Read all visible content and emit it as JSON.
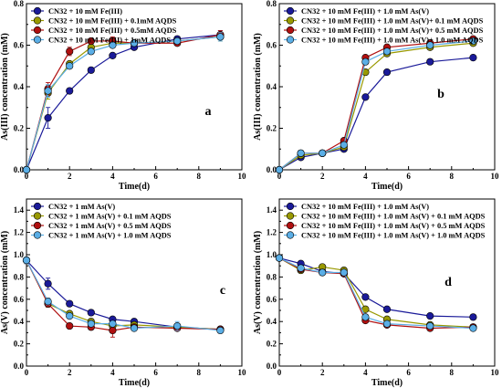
{
  "figure": {
    "panels": [
      {
        "id": "a",
        "letter": "a",
        "xlabel": "Time(d)",
        "ylabel": "As(III) concentration (mM)",
        "xlim": [
          0,
          10
        ],
        "ylim": [
          0,
          0.8
        ],
        "xticks": [
          "0",
          "2",
          "4",
          "6",
          "8",
          "10"
        ],
        "yticks": [
          "0.0",
          "0.2",
          "0.4",
          "0.6",
          "0.8"
        ]
      },
      {
        "id": "b",
        "letter": "b",
        "xlabel": "Time(d)",
        "ylabel": "As(III) concentration (mM)",
        "xlim": [
          0,
          10
        ],
        "ylim": [
          0,
          0.8
        ],
        "xticks": [
          "0",
          "2",
          "4",
          "6",
          "8",
          "10"
        ],
        "yticks": [
          "0.0",
          "0.2",
          "0.4",
          "0.6",
          "0.8"
        ]
      },
      {
        "id": "c",
        "letter": "c",
        "xlabel": "Time(d)",
        "ylabel": "As(V) concentration (mM)",
        "xlim": [
          0,
          10
        ],
        "ylim": [
          0,
          1.5
        ],
        "xticks": [
          "0",
          "2",
          "4",
          "6",
          "8",
          "10"
        ],
        "yticks": [
          "0.0",
          "0.2",
          "0.4",
          "0.6",
          "0.8",
          "1.0",
          "1.2",
          "1.4"
        ]
      },
      {
        "id": "d",
        "letter": "d",
        "xlabel": "Time(d)",
        "ylabel": "As(V) concentration (mM)",
        "xlim": [
          0,
          10
        ],
        "ylim": [
          0,
          1.5
        ],
        "xticks": [
          "0",
          "2",
          "4",
          "6",
          "8",
          "10"
        ],
        "yticks": [
          "0.0",
          "0.2",
          "0.4",
          "0.6",
          "0.8",
          "1.0",
          "1.2",
          "1.4"
        ]
      }
    ]
  },
  "chart_data": [
    {
      "type": "line",
      "panel": "a",
      "x": [
        0,
        1,
        2,
        3,
        4,
        5,
        7,
        9
      ],
      "xlabel": "Time(d)",
      "ylabel": "As(III) concentration (mM)",
      "xlim": [
        0,
        10
      ],
      "ylim": [
        0,
        0.8
      ],
      "legend_position": "top-left",
      "series": [
        {
          "name": "CN32 + 10 mM Fe(III)",
          "color": "#1a1a99",
          "values": [
            0,
            0.25,
            0.38,
            0.48,
            0.55,
            0.59,
            0.63,
            0.65
          ],
          "errors": [
            0,
            0.05,
            0.01,
            0.01,
            0.01,
            0.01,
            0.01,
            0.02
          ]
        },
        {
          "name": "CN32 + 10 mM Fe(III) + 0.1mM AQDS",
          "color": "#999900",
          "values": [
            0,
            0.37,
            0.51,
            0.59,
            0.61,
            0.61,
            0.62,
            0.64
          ],
          "errors": [
            0,
            0.03,
            0.01,
            0.01,
            0.01,
            0.01,
            0.01,
            0.02
          ]
        },
        {
          "name": "CN32 + 10 mM Fe(III) + 0.5mM AQDS",
          "color": "#b01010",
          "values": [
            0,
            0.39,
            0.57,
            0.62,
            0.62,
            0.61,
            0.61,
            0.65
          ],
          "errors": [
            0,
            0.03,
            0.02,
            0.01,
            0.02,
            0.01,
            0.01,
            0.02
          ]
        },
        {
          "name": "CN32 + 10 mM Fe(III) + 1mM AQDS",
          "color": "#5aaee6",
          "values": [
            0,
            0.38,
            0.5,
            0.57,
            0.6,
            0.61,
            0.62,
            0.64
          ],
          "errors": [
            0,
            0.03,
            0.01,
            0.01,
            0.01,
            0.01,
            0.01,
            0.02
          ]
        }
      ]
    },
    {
      "type": "line",
      "panel": "b",
      "x": [
        0,
        1,
        2,
        3,
        4,
        5,
        7,
        9
      ],
      "xlabel": "Time(d)",
      "ylabel": "As(III) concentration (mM)",
      "xlim": [
        0,
        10
      ],
      "ylim": [
        0,
        0.8
      ],
      "legend_position": "top-left",
      "series": [
        {
          "name": "CN32 + 10 mM Fe(III) + 1.0 mM As(V)",
          "color": "#1a1a99",
          "values": [
            0,
            0.06,
            0.08,
            0.1,
            0.35,
            0.47,
            0.52,
            0.54
          ],
          "errors": [
            0,
            0.01,
            0.01,
            0.01,
            0.01,
            0.01,
            0.01,
            0.01
          ]
        },
        {
          "name": "CN32 + 10 mM Fe(III) + 1.0 mM As(V)+ 0.1 mM AQDS",
          "color": "#999900",
          "values": [
            0,
            0.07,
            0.08,
            0.11,
            0.47,
            0.56,
            0.59,
            0.61
          ],
          "errors": [
            0,
            0.01,
            0.01,
            0.01,
            0.01,
            0.01,
            0.01,
            0.01
          ]
        },
        {
          "name": "CN32 + 10 mM Fe(III) + 1.0 mM As(V)+ 0.5 mM AQDS",
          "color": "#b01010",
          "values": [
            0,
            0.08,
            0.08,
            0.14,
            0.54,
            0.59,
            0.61,
            0.63
          ],
          "errors": [
            0,
            0.01,
            0.01,
            0.01,
            0.01,
            0.01,
            0.01,
            0.01
          ]
        },
        {
          "name": "CN32 + 10 mM Fe(III) + 1.0 mM As(V)+ 1.0 mM AQDS",
          "color": "#5aaee6",
          "values": [
            0,
            0.08,
            0.08,
            0.12,
            0.52,
            0.57,
            0.6,
            0.62
          ],
          "errors": [
            0,
            0.01,
            0.01,
            0.01,
            0.01,
            0.01,
            0.01,
            0.01
          ]
        }
      ]
    },
    {
      "type": "line",
      "panel": "c",
      "x": [
        0,
        1,
        2,
        3,
        4,
        5,
        7,
        9
      ],
      "xlabel": "Time(d)",
      "ylabel": "As(V) concentration (mM)",
      "xlim": [
        0,
        10
      ],
      "ylim": [
        0,
        1.5
      ],
      "legend_position": "top-left",
      "series": [
        {
          "name": "CN32 + 1 mM As(V)",
          "color": "#1a1a99",
          "values": [
            0.95,
            0.74,
            0.56,
            0.48,
            0.42,
            0.4,
            0.35,
            0.33
          ],
          "errors": [
            0.03,
            0.05,
            0.02,
            0.02,
            0.02,
            0.02,
            0.02,
            0.02
          ]
        },
        {
          "name": "CN32 + 1 mM As(V) + 0.1 mM AQDS",
          "color": "#999900",
          "values": [
            0.95,
            0.56,
            0.47,
            0.4,
            0.36,
            0.37,
            0.35,
            0.33
          ],
          "errors": [
            0.03,
            0.03,
            0.02,
            0.02,
            0.02,
            0.02,
            0.02,
            0.02
          ]
        },
        {
          "name": "CN32 + 1 mM As(V) + 0.5 mM AQDS",
          "color": "#b01010",
          "values": [
            0.95,
            0.56,
            0.36,
            0.35,
            0.32,
            0.35,
            0.34,
            0.33
          ],
          "errors": [
            0.03,
            0.03,
            0.02,
            0.02,
            0.06,
            0.02,
            0.02,
            0.02
          ]
        },
        {
          "name": "CN32 + 1 mM As(V) + 1.0 mM AQDS",
          "color": "#5aaee6",
          "values": [
            0.95,
            0.58,
            0.45,
            0.38,
            0.38,
            0.34,
            0.36,
            0.32
          ],
          "errors": [
            0.03,
            0.03,
            0.02,
            0.02,
            0.02,
            0.02,
            0.04,
            0.02
          ]
        }
      ]
    },
    {
      "type": "line",
      "panel": "d",
      "x": [
        0,
        1,
        2,
        3,
        4,
        5,
        7,
        9
      ],
      "xlabel": "Time(d)",
      "ylabel": "As(V) concentration (mM)",
      "xlim": [
        0,
        10
      ],
      "ylim": [
        0,
        1.5
      ],
      "legend_position": "top-left",
      "series": [
        {
          "name": "CN32 + 10 mM Fe(III) + 1.0 mM As(V)",
          "color": "#1a1a99",
          "values": [
            0.97,
            0.92,
            0.85,
            0.83,
            0.62,
            0.51,
            0.45,
            0.44
          ],
          "errors": [
            0.02,
            0.02,
            0.02,
            0.02,
            0.02,
            0.02,
            0.02,
            0.02
          ]
        },
        {
          "name": "CN32 + 10 mM Fe(III) + 1.0 mM As(V) + 0.1 mM AQDS",
          "color": "#999900",
          "values": [
            0.97,
            0.86,
            0.89,
            0.86,
            0.51,
            0.42,
            0.37,
            0.35
          ],
          "errors": [
            0.02,
            0.02,
            0.02,
            0.02,
            0.02,
            0.02,
            0.02,
            0.02
          ]
        },
        {
          "name": "CN32 + 10 mM Fe(III) + 1.0 mM As(V) + 0.5 mM AQDS",
          "color": "#b01010",
          "values": [
            0.97,
            0.87,
            0.84,
            0.83,
            0.41,
            0.37,
            0.34,
            0.35
          ],
          "errors": [
            0.02,
            0.02,
            0.02,
            0.02,
            0.02,
            0.02,
            0.02,
            0.02
          ]
        },
        {
          "name": "CN32 + 10 mM Fe(III) + 1.0 mM As(V) + 1.0 mM AQDS",
          "color": "#5aaee6",
          "values": [
            0.97,
            0.88,
            0.84,
            0.84,
            0.44,
            0.38,
            0.36,
            0.34
          ],
          "errors": [
            0.02,
            0.02,
            0.02,
            0.02,
            0.02,
            0.02,
            0.02,
            0.02
          ]
        }
      ]
    }
  ]
}
